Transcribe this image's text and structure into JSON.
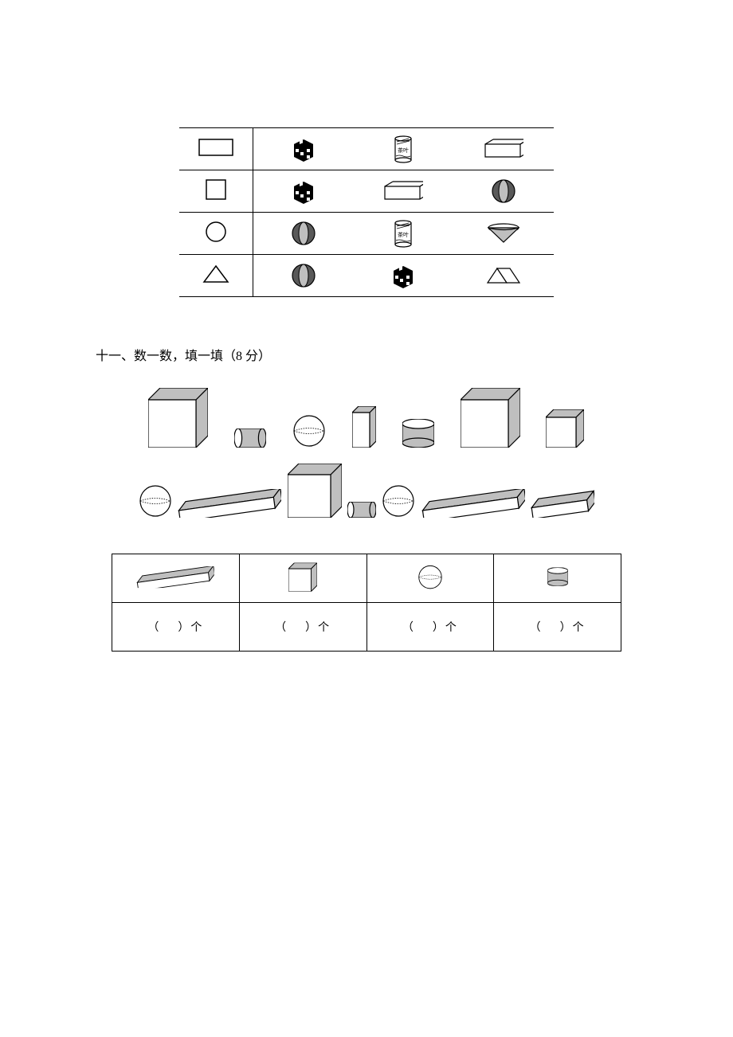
{
  "colors": {
    "black": "#000000",
    "white": "#ffffff",
    "gray_fill": "#bfbfbf",
    "dark_gray": "#595959"
  },
  "match_table": {
    "rows": [
      {
        "shape": "rectangle",
        "items": [
          "checker-cube",
          "tea-can",
          "cuboid"
        ]
      },
      {
        "shape": "square",
        "items": [
          "checker-cube",
          "cuboid",
          "ball"
        ]
      },
      {
        "shape": "circle",
        "items": [
          "ball",
          "tea-can",
          "cone"
        ]
      },
      {
        "shape": "triangle",
        "items": [
          "ball",
          "checker-cube",
          "prism"
        ]
      }
    ]
  },
  "section11": {
    "title": "十一、数一数，填一填（8 分）",
    "scatter_row1": [
      "cube-big",
      "cylinder-small",
      "sphere",
      "cuboid-tall",
      "cylinder-wide",
      "cube-big",
      "cube-small"
    ],
    "scatter_row2": [
      "sphere",
      "long-bar",
      "cube-mid",
      "cylinder-small-h",
      "sphere",
      "long-bar",
      "short-bar"
    ],
    "count_headers": [
      "long-bar",
      "cube-small",
      "sphere",
      "cylinder-short"
    ],
    "count_label_prefix": "（",
    "count_label_suffix": "）个"
  }
}
